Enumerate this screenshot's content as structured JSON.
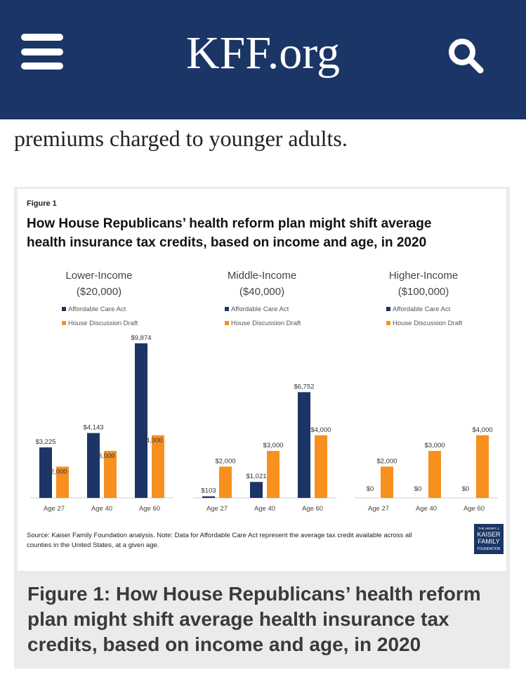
{
  "header": {
    "logo": "KFF.org",
    "menu_icon": "hamburger-menu-icon",
    "search_icon": "search-icon",
    "colors": {
      "bar": "#1b3566"
    }
  },
  "article": {
    "intro_text": "premiums charged to younger adults."
  },
  "figure": {
    "label": "Figure 1",
    "title_line1": "How House Republicans’ health reform plan might shift average",
    "title_line2": "health insurance tax credits, based on income and age, in 2020",
    "source_line1": "Source: Kaiser Family Foundation  analysis. Note: Data for Affordable Care Act represent the average tax credit available across all",
    "source_line2": "counties in the United States, at a given age.",
    "logo_lines": [
      "THE HENRY J.",
      "KAISER",
      "FAMILY",
      "FOUNDATION"
    ],
    "caption": "Figure 1: How House Republicans’ health reform plan might shift average health insurance tax credits, based on income and age, in 2020"
  },
  "chart_data": [
    {
      "type": "bar",
      "title_line1": "Lower-Income",
      "title_line2": "($20,000)",
      "categories": [
        "Age 27",
        "Age 40",
        "Age 60"
      ],
      "series": [
        {
          "name": "Affordable Care Act",
          "color": "#1b3566",
          "values": [
            3225,
            4143,
            9874
          ],
          "labels": [
            "$3,225",
            "$4,143",
            "$9,874"
          ]
        },
        {
          "name": "House Discussion Draft",
          "color": "#f7901e",
          "values": [
            2000,
            3000,
            4000
          ],
          "labels": [
            "$2,000",
            "$3,000",
            "$4,000"
          ]
        }
      ],
      "ylim": [
        0,
        10000
      ]
    },
    {
      "type": "bar",
      "title_line1": "Middle-Income",
      "title_line2": "($40,000)",
      "categories": [
        "Age 27",
        "Age 40",
        "Age 60"
      ],
      "series": [
        {
          "name": "Affordable Care Act",
          "color": "#1b3566",
          "values": [
            103,
            1021,
            6752
          ],
          "labels": [
            "$103",
            "$1,021",
            "$6,752"
          ]
        },
        {
          "name": "House Discussion Draft",
          "color": "#f7901e",
          "values": [
            2000,
            3000,
            4000
          ],
          "labels": [
            "$2,000",
            "$3,000",
            "$4,000"
          ]
        }
      ],
      "ylim": [
        0,
        10000
      ]
    },
    {
      "type": "bar",
      "title_line1": "Higher-Income",
      "title_line2": "($100,000)",
      "categories": [
        "Age 27",
        "Age 40",
        "Age 60"
      ],
      "series": [
        {
          "name": "Affordable Care Act",
          "color": "#1b3566",
          "values": [
            0,
            0,
            0
          ],
          "labels": [
            "$0",
            "$0",
            "$0"
          ]
        },
        {
          "name": "House Discussion Draft",
          "color": "#f7901e",
          "values": [
            2000,
            3000,
            4000
          ],
          "labels": [
            "$2,000",
            "$3,000",
            "$4,000"
          ]
        }
      ],
      "ylim": [
        0,
        10000
      ]
    }
  ]
}
